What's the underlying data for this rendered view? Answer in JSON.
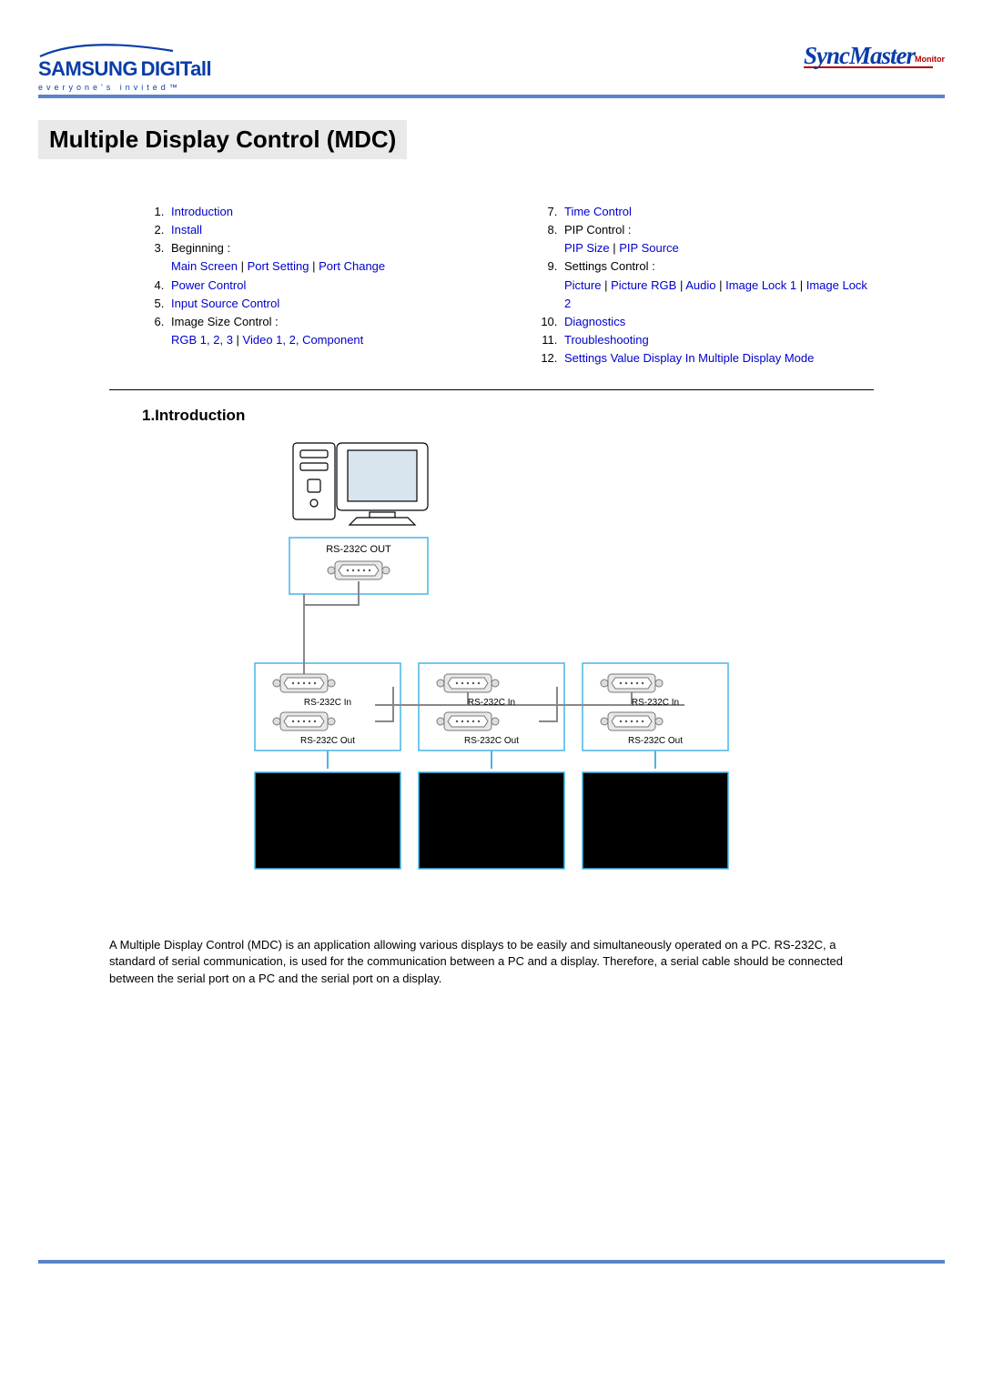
{
  "logos": {
    "samsung": "SAMSUNG",
    "digitall": "DIGITall",
    "tagline": "everyone's invited™",
    "syncmaster": "SyncMaster",
    "monitor": "Monitor"
  },
  "page_title": "Multiple Display Control (MDC)",
  "toc": {
    "left": [
      {
        "n": 1,
        "label": "Introduction",
        "is_link": true
      },
      {
        "n": 2,
        "label": "Install",
        "is_link": true
      },
      {
        "n": 3,
        "label": "Beginning :",
        "is_link": false,
        "sublinks": [
          "Main Screen",
          "Port Setting",
          "Port Change"
        ]
      },
      {
        "n": 4,
        "label": "Power Control",
        "is_link": true
      },
      {
        "n": 5,
        "label": "Input Source Control",
        "is_link": true
      },
      {
        "n": 6,
        "label": "Image Size Control :",
        "is_link": false,
        "sublinks": [
          "RGB 1, 2, 3",
          "Video 1, 2, Component"
        ]
      }
    ],
    "right": [
      {
        "n": 7,
        "label": "Time Control",
        "is_link": true
      },
      {
        "n": 8,
        "label": "PIP Control :",
        "is_link": false,
        "sublinks": [
          "PIP Size",
          "PIP Source"
        ]
      },
      {
        "n": 9,
        "label": "Settings Control :",
        "is_link": false,
        "sublinks": [
          "Picture",
          "Picture RGB",
          "Audio",
          "Image Lock 1",
          "Image Lock 2"
        ]
      },
      {
        "n": 10,
        "label": "Diagnostics",
        "is_link": true
      },
      {
        "n": 11,
        "label": "Troubleshooting",
        "is_link": true
      },
      {
        "n": 12,
        "label": "Settings Value Display In Multiple Display Mode",
        "is_link": true
      }
    ]
  },
  "section1": {
    "heading": "1.Introduction",
    "body": "A Multiple Display Control (MDC) is an application allowing various displays to be easily and simultaneously operated on a PC. RS-232C, a standard of serial communication, is used for the communication between a PC and a display. Therefore, a serial cable should be connected between the serial port on a PC and the serial port on a display."
  },
  "diagram": {
    "labels": {
      "rs232c_out_top": "RS-232C OUT",
      "rs232c_in": "RS-232C In",
      "rs232c_out": "RS-232C Out"
    },
    "colors": {
      "frame_border": "#47b5e8",
      "display_black": "#000000",
      "line_gray": "#888888",
      "bg": "#ffffff"
    }
  },
  "colors": {
    "accent_blue": "#5984c7",
    "link_blue": "#0000cc",
    "brand_blue": "#0a3da8",
    "brand_red": "#b00000",
    "title_bg": "#e9e9e9"
  }
}
